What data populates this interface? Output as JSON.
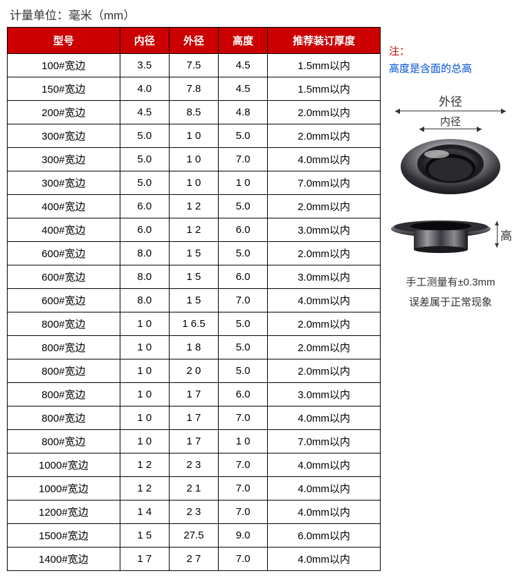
{
  "unit_label": "计量单位：毫米（mm）",
  "table": {
    "header_bg": "#cc0000",
    "header_fg": "#ffffff",
    "border_color": "#000000",
    "columns": [
      "型号",
      "内径",
      "外径",
      "高度",
      "推荐装订厚度"
    ],
    "rows": [
      [
        "100#宽边",
        "3.5",
        "7.5",
        "4.5",
        "1.5mm以内"
      ],
      [
        "150#宽边",
        "4.0",
        "7.8",
        "4.5",
        "1.5mm以内"
      ],
      [
        "200#宽边",
        "4.5",
        "8.5",
        "4.8",
        "2.0mm以内"
      ],
      [
        "300#宽边",
        "5.0",
        "1 0",
        "5.0",
        "2.0mm以内"
      ],
      [
        "300#宽边",
        "5.0",
        "1 0",
        "7.0",
        "4.0mm以内"
      ],
      [
        "300#宽边",
        "5.0",
        "1 0",
        "1 0",
        "7.0mm以内"
      ],
      [
        "400#宽边",
        "6.0",
        "1 2",
        "5.0",
        "2.0mm以内"
      ],
      [
        "400#宽边",
        "6.0",
        "1 2",
        "6.0",
        "3.0mm以内"
      ],
      [
        "600#宽边",
        "8.0",
        "1 5",
        "5.0",
        "2.0mm以内"
      ],
      [
        "600#宽边",
        "8.0",
        "1 5",
        "6.0",
        "3.0mm以内"
      ],
      [
        "600#宽边",
        "8.0",
        "1 5",
        "7.0",
        "4.0mm以内"
      ],
      [
        "800#宽边",
        "1 0",
        "1 6.5",
        "5.0",
        "2.0mm以内"
      ],
      [
        "800#宽边",
        "1 0",
        "1 8",
        "5.0",
        "2.0mm以内"
      ],
      [
        "800#宽边",
        "1 0",
        "2 0",
        "5.0",
        "2.0mm以内"
      ],
      [
        "800#宽边",
        "1 0",
        "1 7",
        "6.0",
        "3.0mm以内"
      ],
      [
        "800#宽边",
        "1 0",
        "1 7",
        "7.0",
        "4.0mm以内"
      ],
      [
        "800#宽边",
        "1 0",
        "1 7",
        "1 0",
        "7.0mm以内"
      ],
      [
        "1000#宽边",
        "1 2",
        "2 3",
        "7.0",
        "4.0mm以内"
      ],
      [
        "1000#宽边",
        "1 2",
        "2 1",
        "7.0",
        "4.0mm以内"
      ],
      [
        "1200#宽边",
        "1 4",
        "2 3",
        "7.0",
        "4.0mm以内"
      ],
      [
        "1500#宽边",
        "1 5",
        "27.5",
        "9.0",
        "6.0mm以内"
      ],
      [
        "1400#宽边",
        "1 7",
        "2 7",
        "7.0",
        "4.0mm以内"
      ]
    ]
  },
  "notes": {
    "title": "注：",
    "text": "高度是含面的总高",
    "manual_line1": "手工测量有±0.3mm",
    "manual_line2": "误差属于正常现象"
  },
  "diagram": {
    "outer_label": "外径",
    "inner_label": "内径",
    "height_label": "高"
  },
  "colors": {
    "red": "#cc0000",
    "blue": "#0050d8",
    "text": "#333333",
    "metal_dark": "#2a2a2e",
    "metal_mid": "#66666a",
    "metal_light": "#c8c8cc"
  }
}
